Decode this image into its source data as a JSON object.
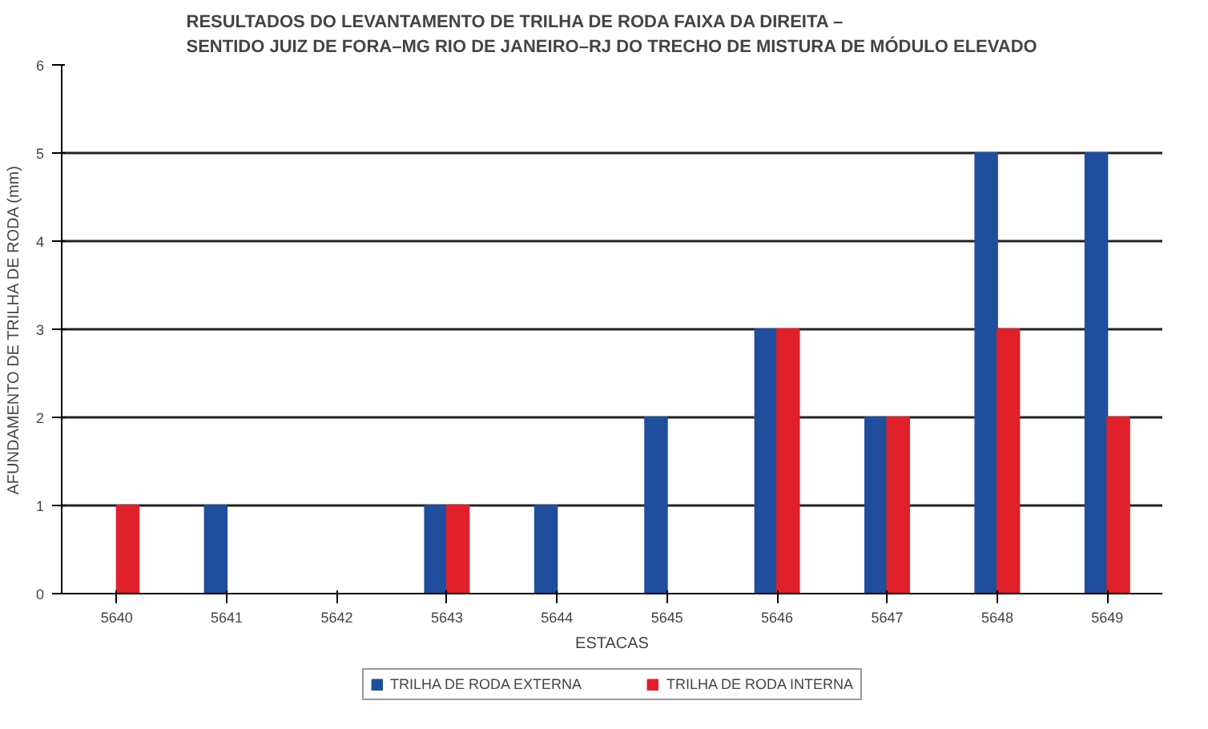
{
  "chart_data": {
    "type": "bar",
    "title": "RESULTADOS DO LEVANTAMENTO DE TRILHA DE RODA FAIXA DA DIREITA –\nSENTIDO JUIZ DE FORA–MG RIO DE JANEIRO–RJ DO TRECHO DE MISTURA DE MÓDULO ELEVADO",
    "xlabel": "ESTACAS",
    "ylabel": "AFUNDAMENTO DE TRILHA DE RODA (mm)",
    "categories": [
      "5640",
      "5641",
      "5642",
      "5643",
      "5644",
      "5645",
      "5646",
      "5647",
      "5648",
      "5649"
    ],
    "series": [
      {
        "name": "TRILHA DE RODA EXTERNA",
        "color": "#1f4e9c",
        "values": [
          0,
          1,
          0,
          1,
          1,
          2,
          3,
          2,
          5,
          5
        ]
      },
      {
        "name": "TRILHA DE RODA INTERNA",
        "color": "#e0202a",
        "values": [
          1,
          0,
          0,
          1,
          0,
          0,
          3,
          2,
          3,
          2
        ]
      }
    ],
    "ylim": [
      0,
      6
    ],
    "yticks": [
      0,
      1,
      2,
      3,
      4,
      5,
      6
    ],
    "grid": "y",
    "legend": "bottom"
  }
}
